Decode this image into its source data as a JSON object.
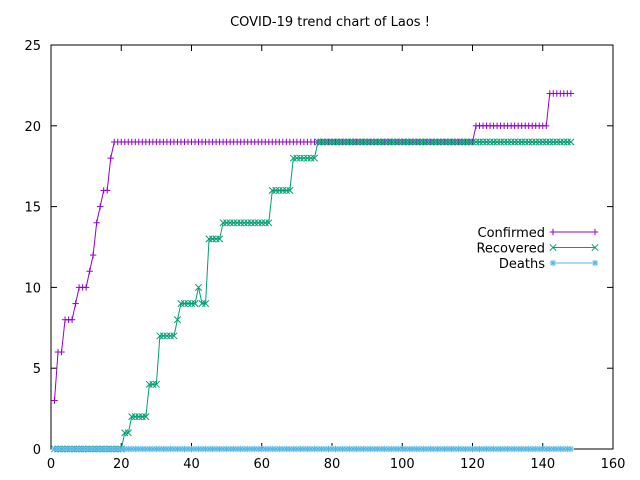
{
  "chart_data": {
    "type": "line",
    "title": "COVID-19 trend chart of Laos !",
    "xlabel": "",
    "ylabel": "",
    "xlim": [
      0,
      160
    ],
    "ylim": [
      0,
      25
    ],
    "xticks": [
      0,
      20,
      40,
      60,
      80,
      100,
      120,
      140,
      160
    ],
    "yticks": [
      0,
      5,
      10,
      15,
      20,
      25
    ],
    "grid": false,
    "legend_position": "right",
    "series": [
      {
        "name": "Confirmed",
        "color": "#9400d3",
        "marker": "plus",
        "steps": [
          [
            1,
            3
          ],
          [
            2,
            6
          ],
          [
            4,
            8
          ],
          [
            7,
            9
          ],
          [
            8,
            10
          ],
          [
            11,
            11
          ],
          [
            12,
            12
          ],
          [
            13,
            14
          ],
          [
            14,
            15
          ],
          [
            15,
            16
          ],
          [
            17,
            18
          ],
          [
            18,
            19
          ],
          [
            121,
            20
          ],
          [
            142,
            22
          ],
          [
            148,
            22
          ]
        ]
      },
      {
        "name": "Recovered",
        "color": "#009e73",
        "marker": "x",
        "steps": [
          [
            1,
            0
          ],
          [
            21,
            1
          ],
          [
            23,
            2
          ],
          [
            28,
            4
          ],
          [
            31,
            7
          ],
          [
            36,
            8
          ],
          [
            37,
            9
          ],
          [
            42,
            10
          ],
          [
            43,
            9
          ],
          [
            45,
            13
          ],
          [
            49,
            14
          ],
          [
            63,
            16
          ],
          [
            69,
            18
          ],
          [
            76,
            19
          ],
          [
            148,
            19
          ]
        ]
      },
      {
        "name": "Deaths",
        "color": "#56b4e9",
        "marker": "star",
        "steps": [
          [
            1,
            0
          ],
          [
            148,
            0
          ]
        ]
      }
    ]
  }
}
